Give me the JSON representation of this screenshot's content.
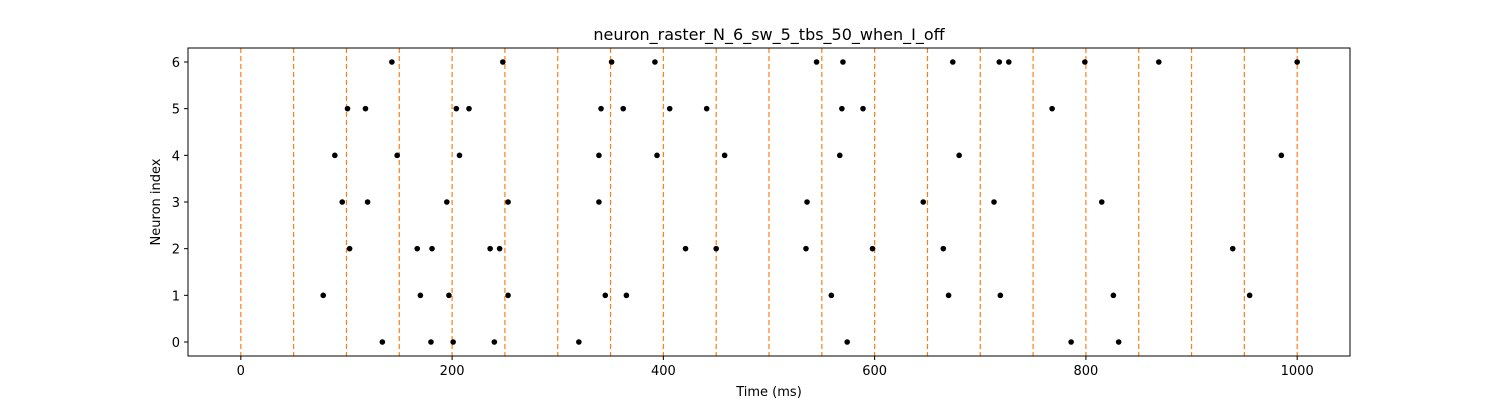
{
  "chart_data": {
    "type": "scatter",
    "title": "neuron_raster_N_6_sw_5_tbs_50_when_I_off",
    "xlabel": "Time (ms)",
    "ylabel": "Neuron index",
    "xlim": [
      -50,
      1050
    ],
    "ylim": [
      -0.3,
      6.3
    ],
    "xticks": [
      0,
      200,
      400,
      600,
      800,
      1000
    ],
    "yticks": [
      0,
      1,
      2,
      3,
      4,
      5,
      6
    ],
    "grid": false,
    "marker_color": "#000000",
    "vline_color": "#ff7f0e",
    "vlines": [
      0,
      50,
      100,
      150,
      200,
      250,
      300,
      350,
      400,
      450,
      500,
      550,
      600,
      650,
      700,
      750,
      800,
      850,
      900,
      950,
      1000
    ],
    "points": [
      {
        "x": 134,
        "y": 0
      },
      {
        "x": 180,
        "y": 0
      },
      {
        "x": 201,
        "y": 0
      },
      {
        "x": 240,
        "y": 0
      },
      {
        "x": 320,
        "y": 0
      },
      {
        "x": 574,
        "y": 0
      },
      {
        "x": 786,
        "y": 0
      },
      {
        "x": 831,
        "y": 0
      },
      {
        "x": 78,
        "y": 1
      },
      {
        "x": 170,
        "y": 1
      },
      {
        "x": 197,
        "y": 1
      },
      {
        "x": 253,
        "y": 1
      },
      {
        "x": 345,
        "y": 1
      },
      {
        "x": 365,
        "y": 1
      },
      {
        "x": 559,
        "y": 1
      },
      {
        "x": 670,
        "y": 1
      },
      {
        "x": 719,
        "y": 1
      },
      {
        "x": 826,
        "y": 1
      },
      {
        "x": 955,
        "y": 1
      },
      {
        "x": 103,
        "y": 2
      },
      {
        "x": 167,
        "y": 2
      },
      {
        "x": 181,
        "y": 2
      },
      {
        "x": 236,
        "y": 2
      },
      {
        "x": 245,
        "y": 2
      },
      {
        "x": 421,
        "y": 2
      },
      {
        "x": 450,
        "y": 2
      },
      {
        "x": 535,
        "y": 2
      },
      {
        "x": 598,
        "y": 2
      },
      {
        "x": 665,
        "y": 2
      },
      {
        "x": 939,
        "y": 2
      },
      {
        "x": 96,
        "y": 3
      },
      {
        "x": 120,
        "y": 3
      },
      {
        "x": 195,
        "y": 3
      },
      {
        "x": 253,
        "y": 3
      },
      {
        "x": 339,
        "y": 3
      },
      {
        "x": 536,
        "y": 3
      },
      {
        "x": 646,
        "y": 3
      },
      {
        "x": 713,
        "y": 3
      },
      {
        "x": 815,
        "y": 3
      },
      {
        "x": 89,
        "y": 4
      },
      {
        "x": 148,
        "y": 4
      },
      {
        "x": 207,
        "y": 4
      },
      {
        "x": 339,
        "y": 4
      },
      {
        "x": 394,
        "y": 4
      },
      {
        "x": 458,
        "y": 4
      },
      {
        "x": 567,
        "y": 4
      },
      {
        "x": 680,
        "y": 4
      },
      {
        "x": 985,
        "y": 4
      },
      {
        "x": 101,
        "y": 5
      },
      {
        "x": 118,
        "y": 5
      },
      {
        "x": 204,
        "y": 5
      },
      {
        "x": 216,
        "y": 5
      },
      {
        "x": 341,
        "y": 5
      },
      {
        "x": 362,
        "y": 5
      },
      {
        "x": 406,
        "y": 5
      },
      {
        "x": 441,
        "y": 5
      },
      {
        "x": 569,
        "y": 5
      },
      {
        "x": 589,
        "y": 5
      },
      {
        "x": 768,
        "y": 5
      },
      {
        "x": 143,
        "y": 6
      },
      {
        "x": 248,
        "y": 6
      },
      {
        "x": 351,
        "y": 6
      },
      {
        "x": 392,
        "y": 6
      },
      {
        "x": 545,
        "y": 6
      },
      {
        "x": 570,
        "y": 6
      },
      {
        "x": 674,
        "y": 6
      },
      {
        "x": 718,
        "y": 6
      },
      {
        "x": 727,
        "y": 6
      },
      {
        "x": 799,
        "y": 6
      },
      {
        "x": 869,
        "y": 6
      },
      {
        "x": 1000,
        "y": 6
      }
    ]
  }
}
